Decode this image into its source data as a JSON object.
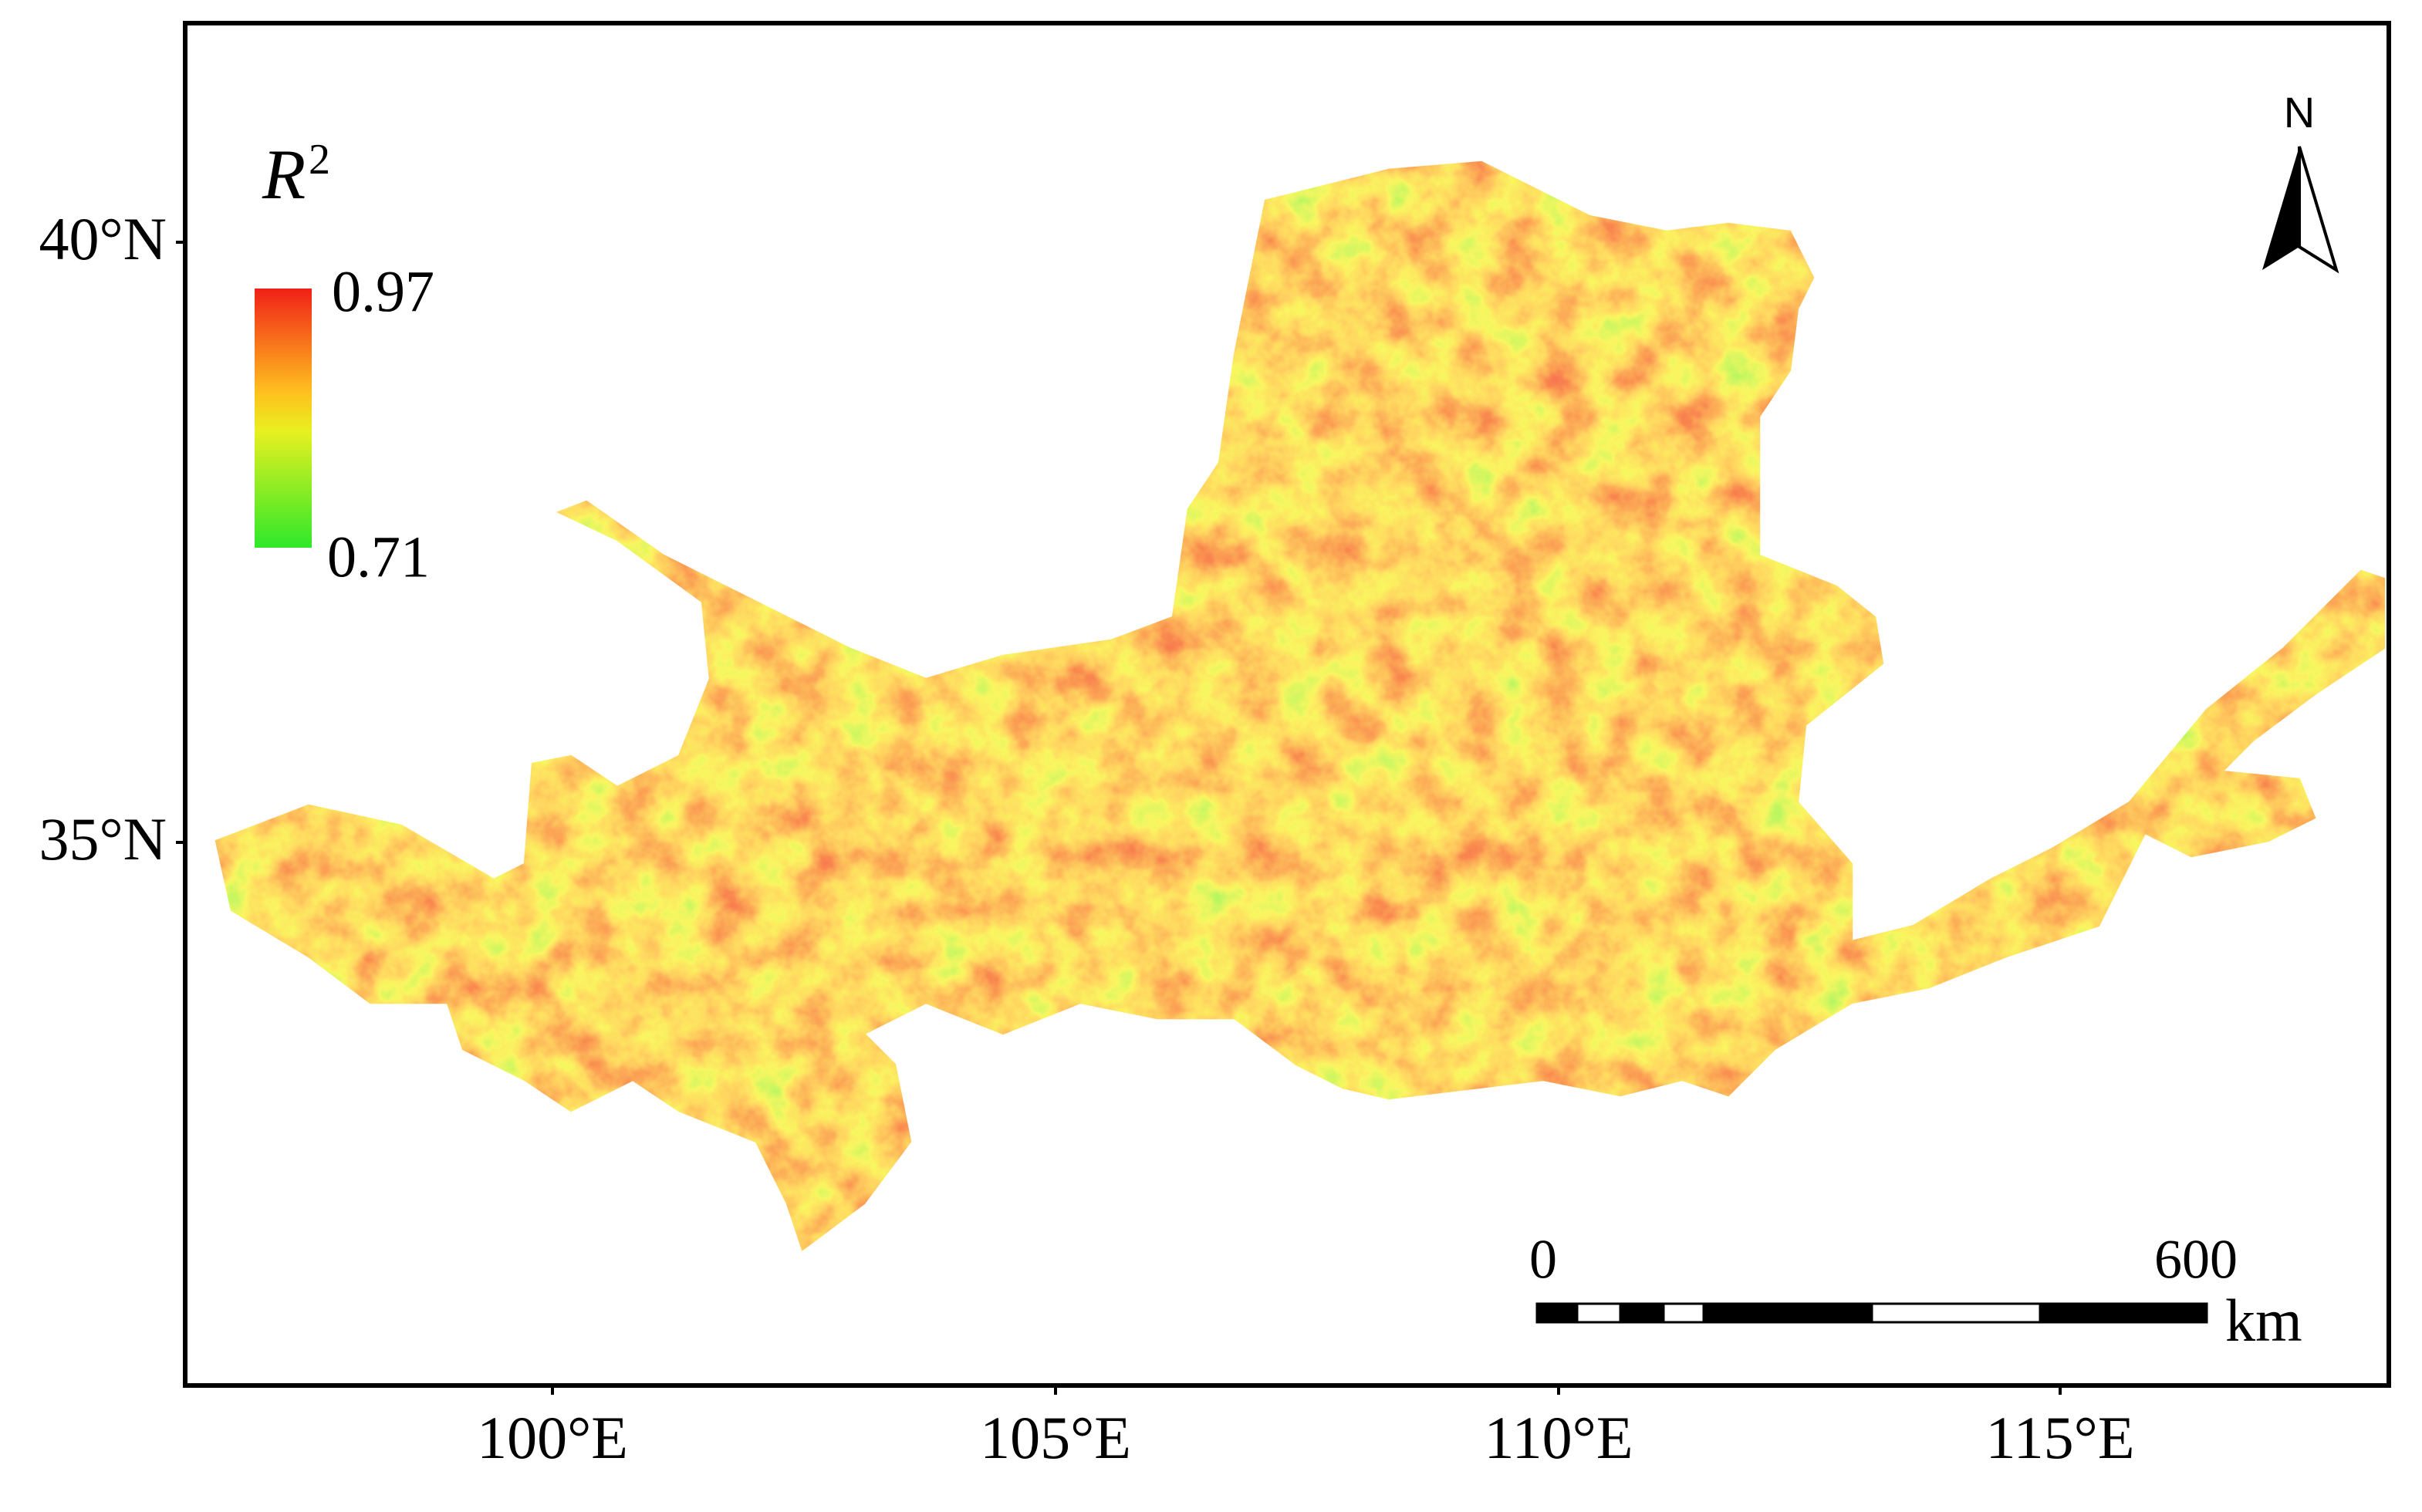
{
  "legend": {
    "title": {
      "symbol": "R",
      "superscript": "2"
    },
    "max": 0.97,
    "min": 0.71
  },
  "latitude_labels": [
    "40°N",
    "35°N"
  ],
  "longitude_labels": [
    "100°E",
    "105°E",
    "110°E",
    "115°E"
  ],
  "north_arrow": {
    "label": "N"
  },
  "scale_bar": {
    "start": 0,
    "end": 600,
    "unit": "km"
  }
}
